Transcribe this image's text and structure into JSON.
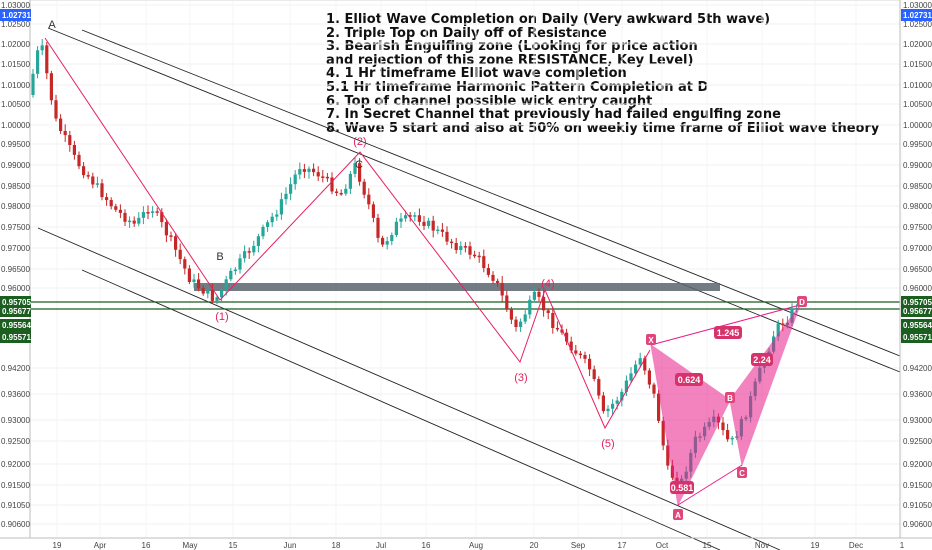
{
  "annotations": [
    "1. Elliot Wave Completion on Daily (Very awkward 5th wave)",
    "2. Triple Top on Daily off of Resistance",
    "3. Bearish Engulfing zone (Looking for price action",
    "and rejection of this zone RESISTANCE, Key Level)",
    "4. 1 Hr timeframe Elliot wave completion",
    "5.1 Hr timeframe  Harmonic Pattern Completion at D",
    "6. Top of channel possible wick entry caught",
    "7. In Secret Channel that previously had failed engulfing zone",
    "8. Wave 5 start and also at 50% on weekly time frame of Elliot wave theory"
  ],
  "chart_data": {
    "type": "candlestick",
    "y_ticks": [
      "1.03000",
      "1.02500",
      "1.02000",
      "1.01500",
      "1.01000",
      "1.00500",
      "1.00000",
      "0.99500",
      "0.99000",
      "0.98500",
      "0.98000",
      "0.97500",
      "0.97000",
      "0.96500",
      "0.96000",
      "0.94200",
      "0.93600",
      "0.93000",
      "0.92500",
      "0.92000",
      "0.91500",
      "0.91050",
      "0.90600"
    ],
    "y_tick_values": [
      1.03,
      1.025,
      1.02,
      1.015,
      1.01,
      1.005,
      1.0,
      0.995,
      0.99,
      0.985,
      0.98,
      0.975,
      0.97,
      0.965,
      0.96,
      0.942,
      0.936,
      0.93,
      0.925,
      0.92,
      0.915,
      0.9105,
      0.906
    ],
    "x_ticks": [
      "19",
      "Apr",
      "16",
      "May",
      "15",
      "Jun",
      "18",
      "Jul",
      "16",
      "Aug",
      "20",
      "Sep",
      "17",
      "Oct",
      "15",
      "Nov",
      "19",
      "Dec",
      "1"
    ],
    "price_tags": [
      {
        "label": "1.02731",
        "value": 1.02731,
        "color": "#2962ff"
      },
      {
        "label": "0.95705",
        "value": 0.95705,
        "color": "#1b5e20"
      },
      {
        "label": "0.95677",
        "value": 0.95677,
        "color": "#1b5e20"
      },
      {
        "label": "0.95564",
        "value": 0.95564,
        "color": "#1b5e20"
      },
      {
        "label": "0.95571",
        "value": 0.95571,
        "color": "#1b5e20"
      }
    ],
    "wave_labels": [
      "A",
      "B",
      "C",
      "(1)",
      "(2)",
      "(3)",
      "(4)",
      "(5)"
    ],
    "harmonic_points": [
      "X",
      "A",
      "B",
      "C",
      "D"
    ],
    "harmonic_ratios": [
      "0.624",
      "0.581",
      "1.245",
      "2.24"
    ],
    "colors": {
      "up": "#26a69a",
      "down": "#c62828",
      "wave": "#e91e63",
      "harmonic": "#e91e8c",
      "zone": "#5b6470",
      "level": "#1b5e20"
    }
  }
}
